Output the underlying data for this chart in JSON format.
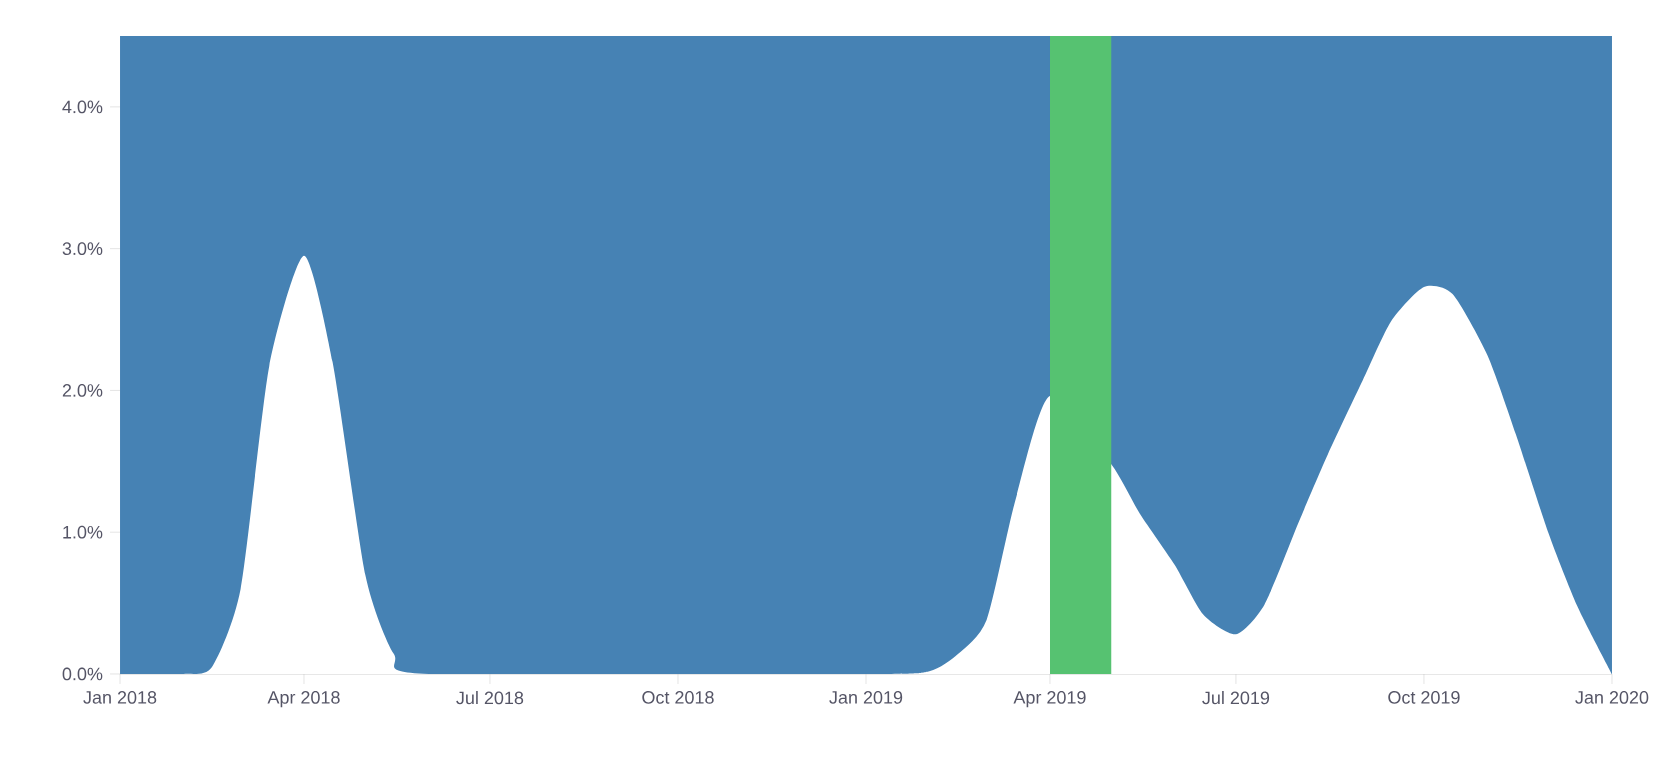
{
  "chart_data": {
    "type": "area",
    "x": [
      "2018-01-01",
      "2018-02-01",
      "2018-02-15",
      "2018-03-01",
      "2018-03-15",
      "2018-04-01",
      "2018-04-15",
      "2018-05-01",
      "2018-05-15",
      "2018-06-01",
      "2019-01-01",
      "2019-02-01",
      "2019-02-15",
      "2019-03-01",
      "2019-03-15",
      "2019-04-01",
      "2019-05-01",
      "2019-05-15",
      "2019-06-01",
      "2019-06-15",
      "2019-07-01",
      "2019-07-15",
      "2019-08-01",
      "2019-08-15",
      "2019-09-01",
      "2019-09-15",
      "2019-10-01",
      "2019-10-15",
      "2019-11-01",
      "2019-11-15",
      "2019-12-01",
      "2019-12-15",
      "2020-01-01"
    ],
    "series": [
      {
        "color": "#ffffff",
        "values": [
          0,
          0,
          0.05,
          0.6,
          2.17,
          2.95,
          2.2,
          0.7,
          0.14,
          0,
          0,
          0.02,
          0.14,
          0.38,
          1.22,
          1.96,
          1.48,
          1.13,
          0.77,
          0.42,
          0.28,
          0.49,
          1.08,
          1.55,
          2.07,
          2.49,
          2.73,
          2.68,
          2.25,
          1.69,
          0.99,
          0.48,
          0
        ]
      }
    ],
    "xlim": [
      "2018-01-01",
      "2020-01-01"
    ],
    "xticks": [
      {
        "value": "2018-01-01",
        "label": "Jan 2018"
      },
      {
        "value": "2018-04-01",
        "label": "Apr 2018"
      },
      {
        "value": "2018-07-01",
        "label": "Jul 2018"
      },
      {
        "value": "2018-10-01",
        "label": "Oct 2018"
      },
      {
        "value": "2019-01-01",
        "label": "Jan 2019"
      },
      {
        "value": "2019-04-01",
        "label": "Apr 2019"
      },
      {
        "value": "2019-07-01",
        "label": "Jul 2019"
      },
      {
        "value": "2019-10-01",
        "label": "Oct 2019"
      },
      {
        "value": "2020-01-01",
        "label": "Jan 2020"
      }
    ],
    "ylim": [
      0,
      4.5
    ],
    "yticks": [
      {
        "value": 0,
        "label": "0.0%"
      },
      {
        "value": 1,
        "label": "1.0%"
      },
      {
        "value": 2,
        "label": "2.0%"
      },
      {
        "value": 3,
        "label": "3.0%"
      },
      {
        "value": 4,
        "label": "4.0%"
      }
    ],
    "bands": [
      {
        "axis": "y",
        "from": 0,
        "to": 4.5,
        "color": "#4682b4"
      },
      {
        "axis": "x",
        "from": "2019-04-01",
        "to": "2019-05-01",
        "color": "#56c271"
      }
    ],
    "grid": false
  }
}
